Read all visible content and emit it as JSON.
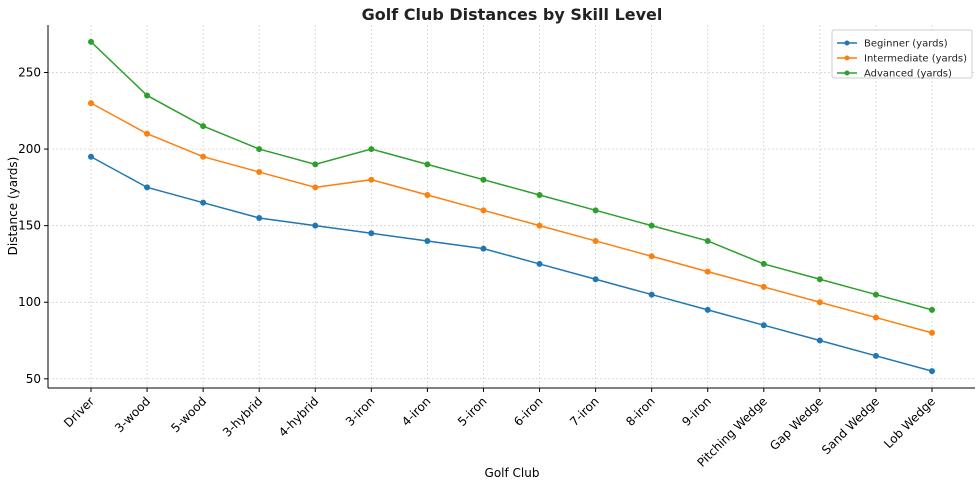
{
  "chart_data": {
    "type": "line",
    "title": "Golf Club Distances by Skill Level",
    "xlabel": "Golf Club",
    "ylabel": "Distance (yards)",
    "categories": [
      "Driver",
      "3-wood",
      "5-wood",
      "3-hybrid",
      "4-hybrid",
      "3-iron",
      "4-iron",
      "5-iron",
      "6-iron",
      "7-iron",
      "8-iron",
      "9-iron",
      "Pitching Wedge",
      "Gap Wedge",
      "Sand Wedge",
      "Lob Wedge"
    ],
    "ylim": [
      44,
      281
    ],
    "yticks": [
      50,
      100,
      150,
      200,
      250
    ],
    "grid": true,
    "legend_position": "top-right",
    "series": [
      {
        "name": "Beginner (yards)",
        "color": "#1f77b4",
        "values": [
          195,
          175,
          165,
          155,
          150,
          145,
          140,
          135,
          125,
          115,
          105,
          95,
          85,
          75,
          65,
          55
        ]
      },
      {
        "name": "Intermediate (yards)",
        "color": "#ff7f0e",
        "values": [
          230,
          210,
          195,
          185,
          175,
          180,
          170,
          160,
          150,
          140,
          130,
          120,
          110,
          100,
          90,
          80
        ]
      },
      {
        "name": "Advanced (yards)",
        "color": "#2ca02c",
        "values": [
          270,
          235,
          215,
          200,
          190,
          200,
          190,
          180,
          170,
          160,
          150,
          140,
          125,
          115,
          105,
          95
        ]
      }
    ]
  }
}
